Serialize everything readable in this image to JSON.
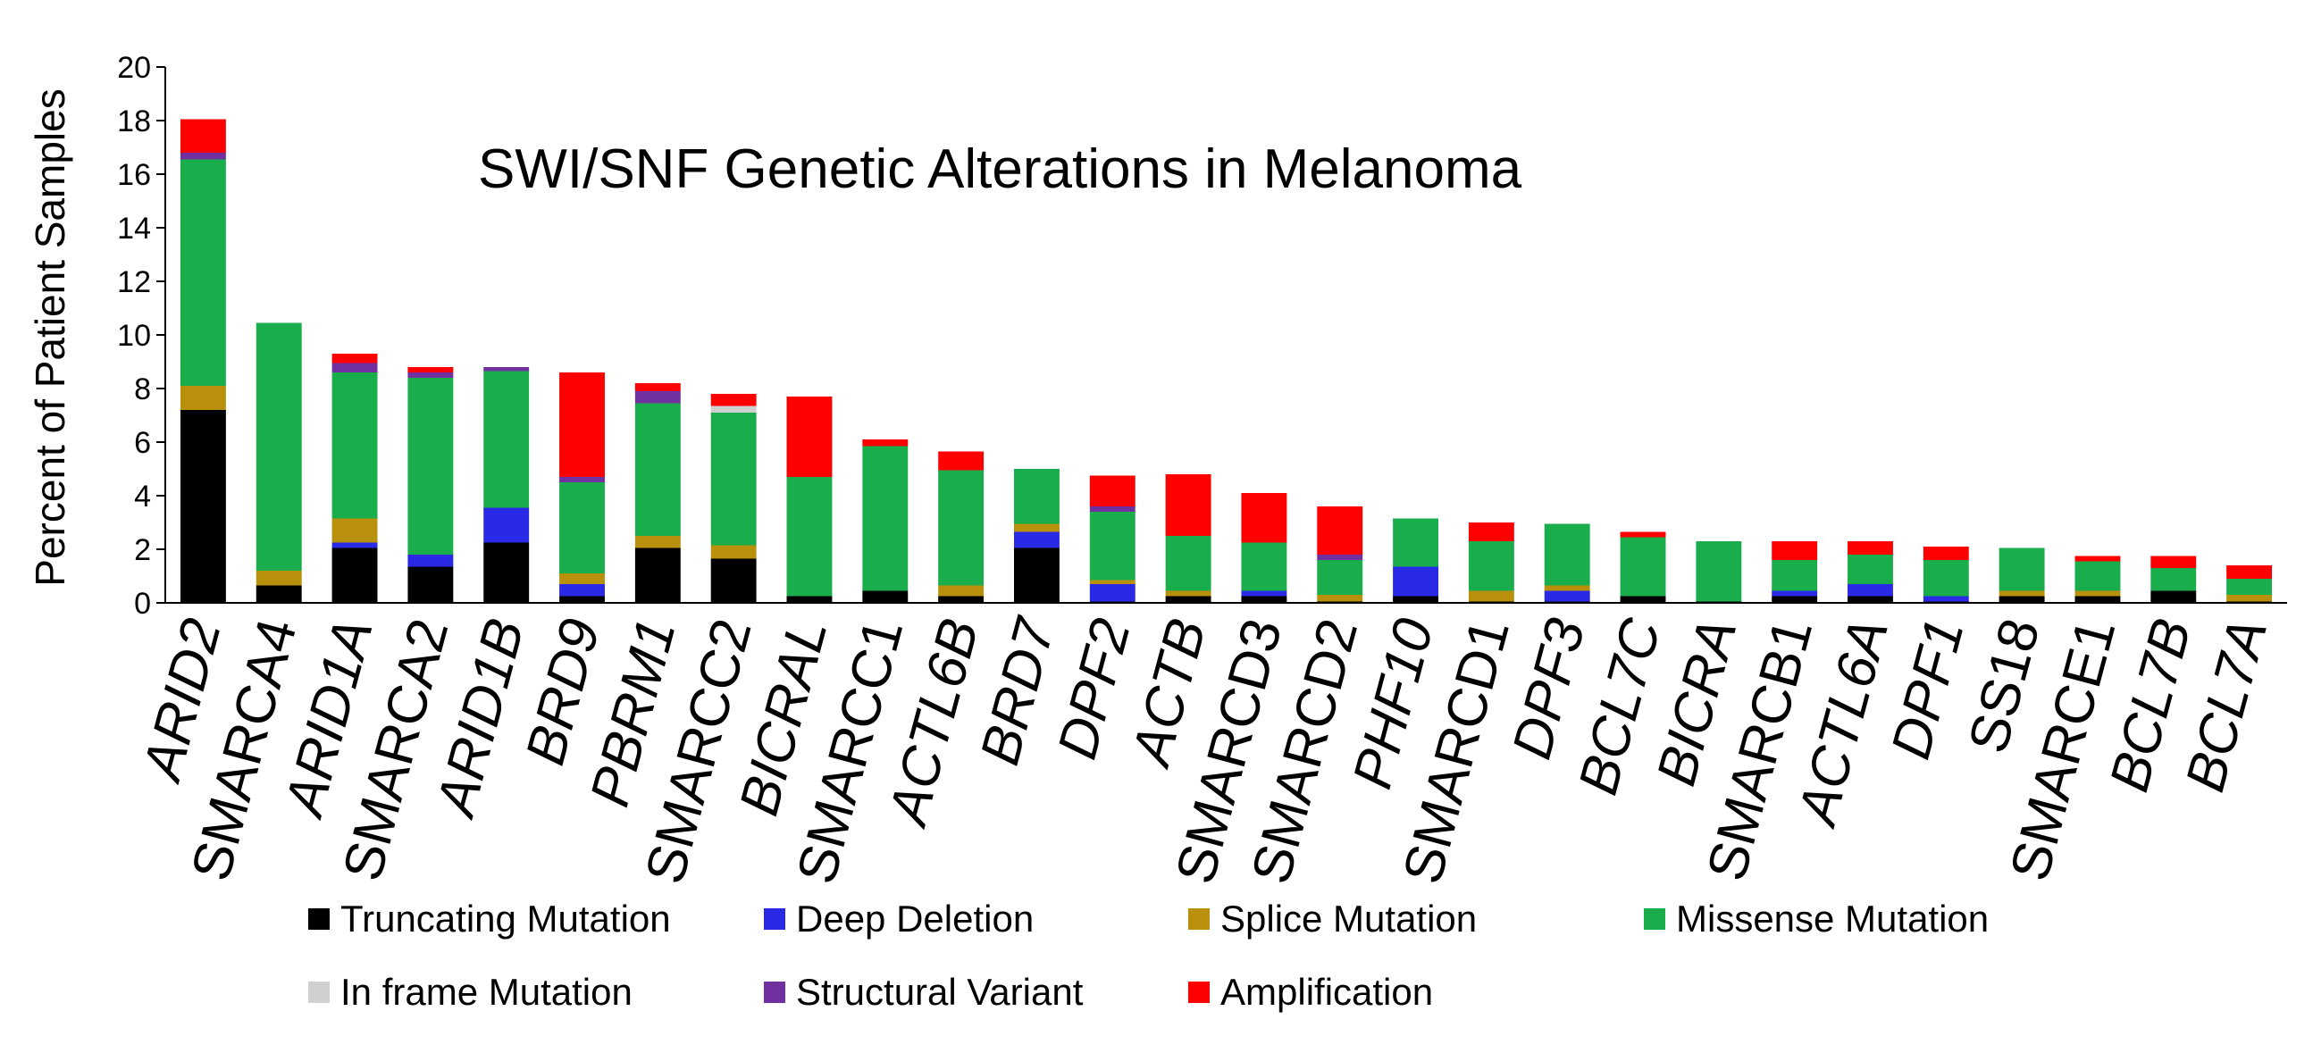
{
  "chart_data": {
    "type": "bar",
    "stacked": true,
    "title": "SWI/SNF Genetic Alterations in Melanoma",
    "xlabel": "",
    "ylabel": "Percent of Patient Samples",
    "ylim": [
      0,
      20
    ],
    "yticks": [
      "0",
      "2",
      "4",
      "6",
      "8",
      "10",
      "12",
      "14",
      "16",
      "18",
      "20"
    ],
    "grid": false,
    "legend_position": "bottom",
    "categories": [
      "ARID2",
      "SMARCA4",
      "ARID1A",
      "SMARCA2",
      "ARID1B",
      "BRD9",
      "PBRM1",
      "SMARCC2",
      "BICRAL",
      "SMARCC1",
      "ACTL6B",
      "BRD7",
      "DPF2",
      "ACTB",
      "SMARCD3",
      "SMARCD2",
      "PHF10",
      "SMARCD1",
      "DPF3",
      "BCL7C",
      "BICRA",
      "SMARCB1",
      "ACTL6A",
      "DPF1",
      "SS18",
      "SMARCE1",
      "BCL7B",
      "BCL7A"
    ],
    "italic_categories": [
      true,
      false,
      true,
      false,
      true,
      true,
      true,
      false,
      true,
      false,
      true,
      true,
      true,
      true,
      false,
      false,
      true,
      false,
      true,
      true,
      true,
      false,
      true,
      true,
      false,
      false,
      true,
      true
    ],
    "series": [
      {
        "name": "Truncating Mutation",
        "color": "#000000",
        "values": [
          7.2,
          0.65,
          2.05,
          1.35,
          2.25,
          0.25,
          2.05,
          1.65,
          0.25,
          0.45,
          0.25,
          2.05,
          0.05,
          0.25,
          0.25,
          0.05,
          0.25,
          0.05,
          0.05,
          0.25,
          0.05,
          0.25,
          0.25,
          0.05,
          0.25,
          0.25,
          0.45,
          0.05
        ]
      },
      {
        "name": "Deep Deletion",
        "color": "#2a2ae6",
        "values": [
          0,
          0,
          0.2,
          0.45,
          1.3,
          0.45,
          0,
          0,
          0,
          0,
          0,
          0.6,
          0.65,
          0,
          0.2,
          0,
          1.1,
          0,
          0.4,
          0,
          0,
          0.2,
          0.45,
          0.2,
          0,
          0,
          0,
          0
        ]
      },
      {
        "name": "Splice Mutation",
        "color": "#b8900c",
        "values": [
          0.9,
          0.55,
          0.9,
          0,
          0,
          0.4,
          0.45,
          0.5,
          0,
          0,
          0.4,
          0.3,
          0.15,
          0.2,
          0,
          0.25,
          0,
          0.4,
          0.2,
          0,
          0,
          0,
          0,
          0,
          0.2,
          0.2,
          0,
          0.25
        ]
      },
      {
        "name": "Missense Mutation",
        "color": "#1aad4b",
        "values": [
          8.45,
          9.25,
          5.45,
          6.6,
          5.1,
          3.4,
          4.95,
          4.95,
          4.45,
          5.4,
          4.3,
          2.05,
          2.55,
          2.05,
          1.8,
          1.3,
          1.8,
          1.85,
          2.3,
          2.2,
          2.25,
          1.15,
          1.1,
          1.35,
          1.6,
          1.1,
          0.85,
          0.6
        ]
      },
      {
        "name": "In frame Mutation",
        "color": "#d0d0d0",
        "values": [
          0,
          0,
          0,
          0,
          0,
          0,
          0,
          0.25,
          0,
          0,
          0,
          0,
          0,
          0,
          0,
          0,
          0,
          0,
          0,
          0,
          0,
          0,
          0,
          0,
          0,
          0,
          0,
          0
        ]
      },
      {
        "name": "Structural Variant",
        "color": "#7030a0",
        "values": [
          0.25,
          0,
          0.35,
          0.2,
          0.15,
          0.2,
          0.45,
          0,
          0,
          0,
          0,
          0,
          0.2,
          0,
          0,
          0.2,
          0,
          0,
          0,
          0,
          0,
          0,
          0,
          0,
          0,
          0,
          0,
          0
        ]
      },
      {
        "name": "Amplification",
        "color": "#ff0000",
        "values": [
          1.25,
          0,
          0.35,
          0.2,
          0,
          3.9,
          0.3,
          0.45,
          3.0,
          0.25,
          0.7,
          0,
          1.15,
          2.3,
          1.85,
          1.8,
          0,
          0.7,
          0,
          0.2,
          0,
          0.7,
          0.5,
          0.5,
          0,
          0.2,
          0.45,
          0.5
        ]
      }
    ]
  }
}
